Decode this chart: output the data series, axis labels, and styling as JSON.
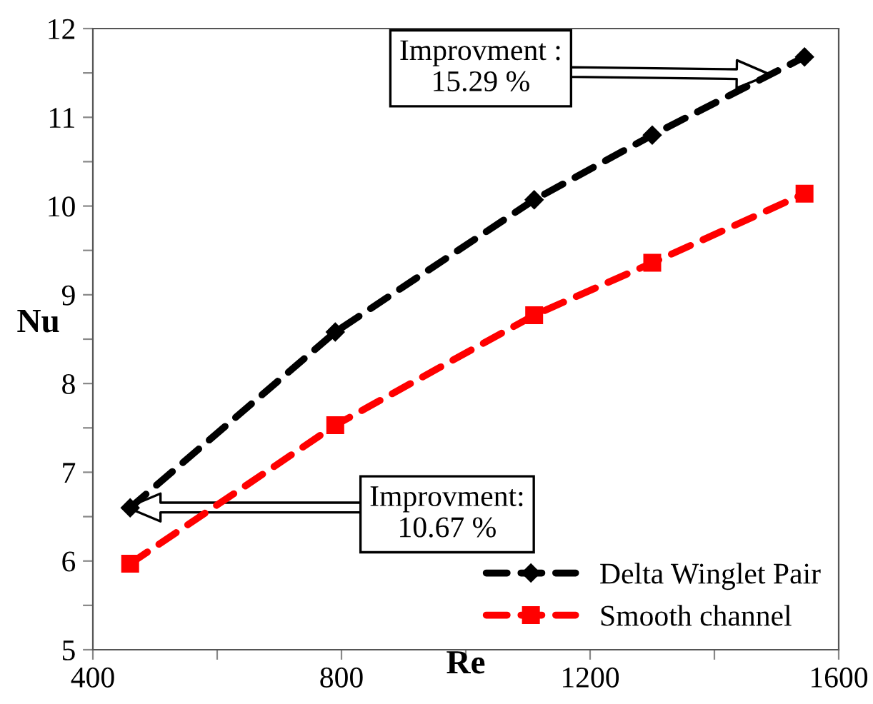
{
  "chart_data": {
    "type": "line",
    "xlabel": "Re",
    "ylabel": "Nu",
    "xlim": [
      400,
      1600
    ],
    "xticks": [
      400,
      {
        "value": 600,
        "label": null
      },
      800,
      {
        "value": 1000,
        "label": null
      },
      1200,
      {
        "value": 1400,
        "label": null
      },
      1600
    ],
    "ylim": [
      5,
      12
    ],
    "yticks": [
      5,
      {
        "value": 5.5,
        "label": null
      },
      6,
      {
        "value": 6.5,
        "label": null
      },
      7,
      {
        "value": 7.5,
        "label": null
      },
      8,
      {
        "value": 8.5,
        "label": null
      },
      9,
      {
        "value": 9.5,
        "label": null
      },
      10,
      {
        "value": 10.5,
        "label": null
      },
      11,
      {
        "value": 11.5,
        "label": null
      },
      12
    ],
    "line_style": "dashed",
    "grid": false,
    "legend": "bottom right",
    "series": [
      {
        "name": "Delta Winglet Pair",
        "color": "#000000",
        "marker": "diamond",
        "x": [
          460,
          790,
          1110,
          1300,
          1545
        ],
        "values": [
          6.6,
          8.58,
          10.07,
          10.8,
          11.68
        ]
      },
      {
        "name": "Smooth channel",
        "color": "#ff0000",
        "marker": "square",
        "x": [
          460,
          790,
          1110,
          1300,
          1545
        ],
        "values": [
          5.97,
          7.53,
          8.77,
          9.36,
          10.14
        ]
      }
    ],
    "annotations": [
      "Improvment :\n15.29 %",
      "Improvment:\n10.67 %"
    ]
  }
}
